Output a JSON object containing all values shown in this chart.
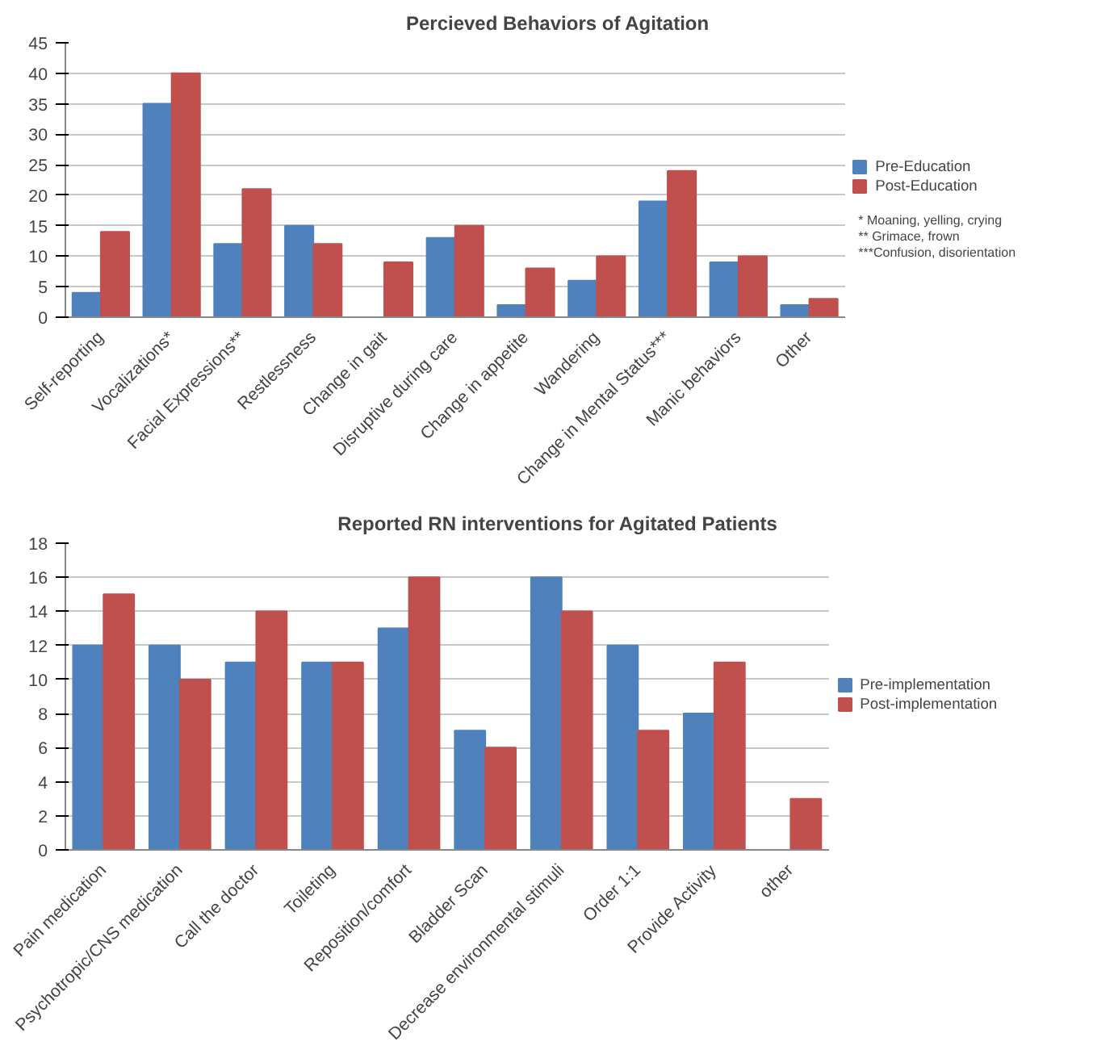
{
  "chart_data": [
    {
      "type": "bar",
      "title": "Percieved Behaviors of Agitation",
      "categories": [
        "Self-reporting",
        "Vocalizations*",
        "Facial Expressions**",
        "Restlessness",
        "Change in gait",
        "Disruptive during care",
        "Change in appetite",
        "Wandering",
        "Change in Mental Status***",
        "Manic behaviors",
        "Other"
      ],
      "series": [
        {
          "name": "Pre-Education",
          "color": "#4f81bd",
          "values": [
            4,
            35,
            12,
            15,
            0,
            13,
            2,
            6,
            19,
            9,
            2
          ]
        },
        {
          "name": "Post-Education",
          "color": "#c0504d",
          "values": [
            14,
            40,
            21,
            12,
            9,
            15,
            8,
            10,
            24,
            10,
            3
          ]
        }
      ],
      "ylim": [
        0,
        45
      ],
      "yticks": [
        0,
        5,
        10,
        15,
        20,
        25,
        30,
        35,
        40,
        45
      ],
      "grid": "y",
      "legend": "right",
      "annotations": [
        "* Moaning, yelling, crying",
        "** Grimace, frown",
        "***Confusion, disorientation"
      ]
    },
    {
      "type": "bar",
      "title": "Reported RN interventions for Agitated Patients",
      "categories": [
        "Pain medication",
        "Psychotropic/CNS medication",
        "Call the doctor",
        "Toileting",
        "Reposition/comfort",
        "Bladder Scan",
        "Decrease environmental stimuli",
        "Order 1:1",
        "Provide Activity",
        "other"
      ],
      "series": [
        {
          "name": "Pre-implementation",
          "color": "#4f81bd",
          "values": [
            12,
            12,
            11,
            11,
            13,
            7,
            16,
            12,
            8,
            0
          ]
        },
        {
          "name": "Post-implementation",
          "color": "#c0504d",
          "values": [
            15,
            10,
            14,
            11,
            16,
            6,
            14,
            7,
            11,
            3
          ]
        }
      ],
      "ylim": [
        0,
        18
      ],
      "yticks": [
        0,
        2,
        4,
        6,
        8,
        10,
        12,
        14,
        16,
        18
      ],
      "grid": "y",
      "legend": "right"
    }
  ]
}
